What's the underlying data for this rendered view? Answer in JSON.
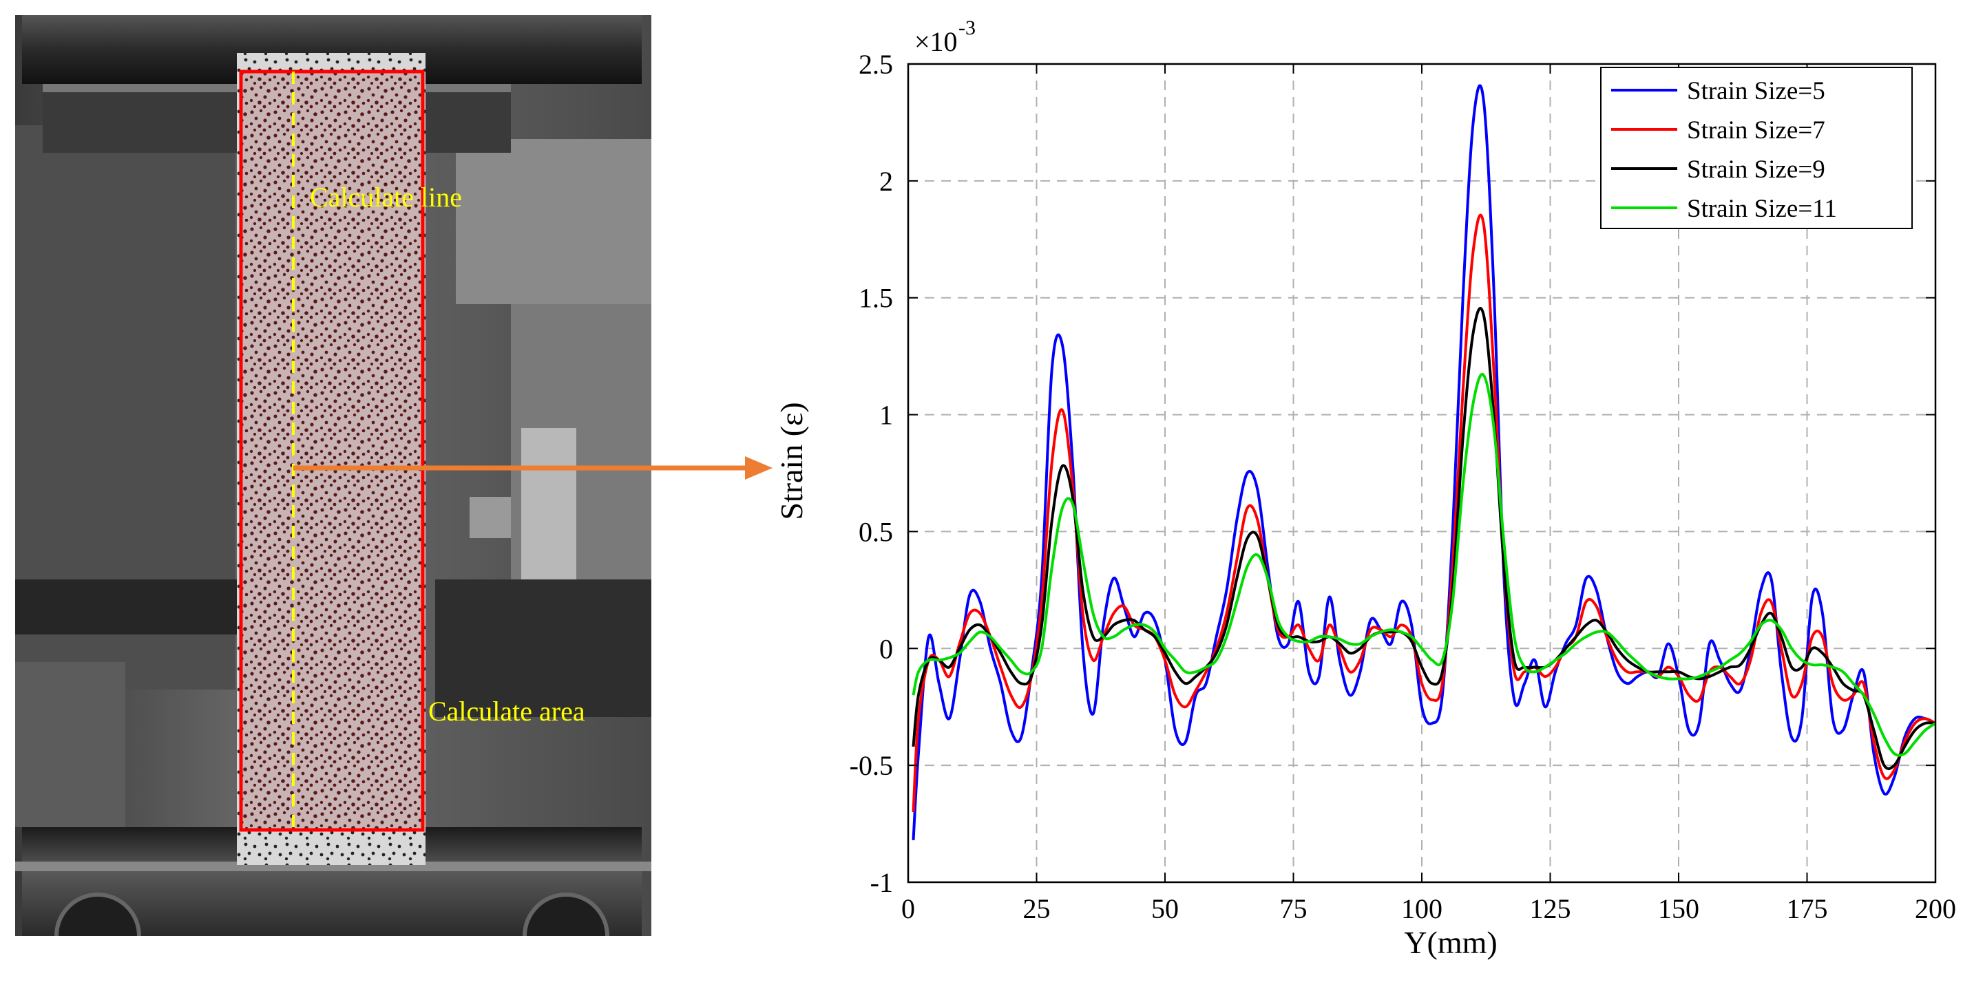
{
  "photo": {
    "line_label": "Calculate line",
    "area_label": "Calculate area",
    "line_color": "#ffff00",
    "area_color": "#ff0000",
    "arrow_color": "#ed7d31"
  },
  "chart_data": {
    "type": "line",
    "xlabel": "Y(mm)",
    "ylabel": "Strain (ε)",
    "y_multiplier": "×10",
    "y_exponent": "-3",
    "xlim": [
      0,
      200
    ],
    "ylim": [
      -1,
      2.5
    ],
    "xticks": [
      0,
      25,
      50,
      75,
      100,
      125,
      150,
      175,
      200
    ],
    "yticks": [
      -1,
      -0.5,
      0,
      0.5,
      1,
      1.5,
      2,
      2.5
    ],
    "xtick_labels": [
      "0",
      "25",
      "50",
      "75",
      "100",
      "125",
      "150",
      "175",
      "200"
    ],
    "ytick_labels": [
      "-1",
      "-0.5",
      "0",
      "0.5",
      "1",
      "1.5",
      "2",
      "2.5"
    ],
    "grid": true,
    "legend_position": "top-right",
    "series": [
      {
        "name": "Strain Size=5",
        "color": "#0000ff",
        "x": [
          1,
          2,
          4,
          6,
          8,
          10,
          12,
          14,
          16,
          18,
          20,
          22,
          24,
          26,
          28,
          30,
          32,
          34,
          36,
          38,
          40,
          42,
          44,
          46,
          48,
          50,
          52,
          54,
          56,
          58,
          60,
          62,
          64,
          66,
          68,
          70,
          72,
          74,
          76,
          78,
          80,
          82,
          84,
          86,
          88,
          90,
          92,
          94,
          96,
          98,
          100,
          102,
          104,
          106,
          108,
          110,
          112,
          114,
          116,
          118,
          120,
          122,
          124,
          126,
          128,
          130,
          132,
          134,
          136,
          138,
          140,
          142,
          144,
          146,
          148,
          150,
          152,
          154,
          156,
          158,
          160,
          162,
          164,
          166,
          168,
          170,
          172,
          174,
          176,
          178,
          180,
          182,
          184,
          186,
          188,
          190,
          192,
          194,
          196,
          198,
          200
        ],
        "y": [
          -0.82,
          -0.45,
          0.05,
          -0.15,
          -0.3,
          -0.05,
          0.23,
          0.2,
          0.0,
          -0.15,
          -0.35,
          -0.38,
          -0.1,
          0.3,
          1.2,
          1.3,
          0.8,
          0.0,
          -0.28,
          0.1,
          0.3,
          0.18,
          0.05,
          0.15,
          0.12,
          -0.05,
          -0.35,
          -0.4,
          -0.2,
          -0.15,
          0.05,
          0.25,
          0.55,
          0.75,
          0.68,
          0.35,
          0.05,
          0.02,
          0.2,
          -0.1,
          -0.12,
          0.22,
          -0.05,
          -0.2,
          -0.1,
          0.12,
          0.08,
          0.02,
          0.2,
          0.1,
          -0.25,
          -0.32,
          -0.2,
          0.5,
          1.5,
          2.25,
          2.35,
          1.55,
          0.3,
          -0.22,
          -0.15,
          -0.05,
          -0.25,
          -0.1,
          0.02,
          0.1,
          0.3,
          0.25,
          0.05,
          -0.1,
          -0.15,
          -0.12,
          -0.1,
          -0.12,
          0.02,
          -0.12,
          -0.35,
          -0.32,
          0.02,
          -0.05,
          -0.15,
          -0.18,
          0.0,
          0.25,
          0.3,
          -0.1,
          -0.38,
          -0.3,
          0.22,
          0.15,
          -0.3,
          -0.35,
          -0.2,
          -0.1,
          -0.45,
          -0.62,
          -0.55,
          -0.38,
          -0.3,
          -0.3,
          -0.32
        ]
      },
      {
        "name": "Strain Size=7",
        "color": "#ff0000",
        "x": [
          1,
          2,
          4,
          6,
          8,
          10,
          12,
          14,
          16,
          18,
          20,
          22,
          24,
          26,
          28,
          30,
          32,
          34,
          36,
          38,
          40,
          42,
          44,
          46,
          48,
          50,
          52,
          54,
          56,
          58,
          60,
          62,
          64,
          66,
          68,
          70,
          72,
          74,
          76,
          78,
          80,
          82,
          84,
          86,
          88,
          90,
          92,
          94,
          96,
          98,
          100,
          102,
          104,
          106,
          108,
          110,
          112,
          114,
          116,
          118,
          120,
          122,
          124,
          126,
          128,
          130,
          132,
          134,
          136,
          138,
          140,
          142,
          144,
          146,
          148,
          150,
          152,
          154,
          156,
          158,
          160,
          162,
          164,
          166,
          168,
          170,
          172,
          174,
          176,
          178,
          180,
          182,
          184,
          186,
          188,
          190,
          192,
          194,
          196,
          198,
          200
        ],
        "y": [
          -0.7,
          -0.3,
          -0.05,
          -0.05,
          -0.12,
          0.02,
          0.15,
          0.15,
          0.05,
          -0.08,
          -0.2,
          -0.25,
          -0.12,
          0.2,
          0.8,
          1.02,
          0.7,
          0.15,
          -0.05,
          0.05,
          0.15,
          0.18,
          0.1,
          0.08,
          0.05,
          -0.05,
          -0.2,
          -0.25,
          -0.18,
          -0.1,
          0.0,
          0.15,
          0.38,
          0.6,
          0.55,
          0.3,
          0.08,
          0.05,
          0.1,
          0.0,
          -0.05,
          0.1,
          0.0,
          -0.1,
          -0.05,
          0.08,
          0.08,
          0.05,
          0.1,
          0.05,
          -0.15,
          -0.22,
          -0.15,
          0.35,
          1.1,
          1.7,
          1.82,
          1.2,
          0.35,
          -0.1,
          -0.1,
          -0.08,
          -0.12,
          -0.08,
          0.0,
          0.05,
          0.2,
          0.18,
          0.05,
          -0.05,
          -0.1,
          -0.1,
          -0.1,
          -0.12,
          -0.08,
          -0.12,
          -0.2,
          -0.22,
          -0.1,
          -0.08,
          -0.12,
          -0.15,
          -0.05,
          0.15,
          0.2,
          0.0,
          -0.2,
          -0.15,
          0.05,
          0.05,
          -0.15,
          -0.22,
          -0.2,
          -0.15,
          -0.4,
          -0.55,
          -0.52,
          -0.4,
          -0.32,
          -0.3,
          -0.32
        ]
      },
      {
        "name": "Strain Size=9",
        "color": "#000000",
        "x": [
          1,
          2,
          4,
          6,
          8,
          10,
          12,
          14,
          16,
          18,
          20,
          22,
          24,
          26,
          28,
          30,
          32,
          34,
          36,
          38,
          40,
          42,
          44,
          46,
          48,
          50,
          52,
          54,
          56,
          58,
          60,
          62,
          64,
          66,
          68,
          70,
          72,
          74,
          76,
          78,
          80,
          82,
          84,
          86,
          88,
          90,
          92,
          94,
          96,
          98,
          100,
          102,
          104,
          106,
          108,
          110,
          112,
          114,
          116,
          118,
          120,
          122,
          124,
          126,
          128,
          130,
          132,
          134,
          136,
          138,
          140,
          142,
          144,
          146,
          148,
          150,
          152,
          154,
          156,
          158,
          160,
          162,
          164,
          166,
          168,
          170,
          172,
          174,
          176,
          178,
          180,
          182,
          184,
          186,
          188,
          190,
          192,
          194,
          196,
          198,
          200
        ],
        "y": [
          -0.42,
          -0.2,
          -0.05,
          -0.05,
          -0.08,
          0.0,
          0.08,
          0.1,
          0.05,
          -0.02,
          -0.1,
          -0.15,
          -0.12,
          0.1,
          0.55,
          0.78,
          0.65,
          0.25,
          0.05,
          0.05,
          0.1,
          0.12,
          0.12,
          0.08,
          0.05,
          -0.02,
          -0.1,
          -0.15,
          -0.12,
          -0.08,
          -0.02,
          0.1,
          0.3,
          0.47,
          0.48,
          0.3,
          0.1,
          0.05,
          0.05,
          0.03,
          0.03,
          0.05,
          0.02,
          -0.02,
          0.0,
          0.05,
          0.07,
          0.07,
          0.07,
          0.03,
          -0.08,
          -0.15,
          -0.1,
          0.25,
          0.9,
          1.35,
          1.43,
          1.0,
          0.35,
          -0.05,
          -0.08,
          -0.08,
          -0.08,
          -0.05,
          0.0,
          0.05,
          0.1,
          0.12,
          0.07,
          0.0,
          -0.05,
          -0.08,
          -0.1,
          -0.1,
          -0.1,
          -0.1,
          -0.12,
          -0.13,
          -0.12,
          -0.1,
          -0.08,
          -0.07,
          0.0,
          0.1,
          0.15,
          0.05,
          -0.08,
          -0.08,
          0.0,
          -0.02,
          -0.08,
          -0.15,
          -0.18,
          -0.2,
          -0.35,
          -0.5,
          -0.5,
          -0.42,
          -0.35,
          -0.32,
          -0.32
        ]
      },
      {
        "name": "Strain Size=11",
        "color": "#00dd00",
        "x": [
          1,
          2,
          4,
          6,
          8,
          10,
          12,
          14,
          16,
          18,
          20,
          22,
          24,
          26,
          28,
          30,
          32,
          34,
          36,
          38,
          40,
          42,
          44,
          46,
          48,
          50,
          52,
          54,
          56,
          58,
          60,
          62,
          64,
          66,
          68,
          70,
          72,
          74,
          76,
          78,
          80,
          82,
          84,
          86,
          88,
          90,
          92,
          94,
          96,
          98,
          100,
          102,
          104,
          106,
          108,
          110,
          112,
          114,
          116,
          118,
          120,
          122,
          124,
          126,
          128,
          130,
          132,
          134,
          136,
          138,
          140,
          142,
          144,
          146,
          148,
          150,
          152,
          154,
          156,
          158,
          160,
          162,
          164,
          166,
          168,
          170,
          172,
          174,
          176,
          178,
          180,
          182,
          184,
          186,
          188,
          190,
          192,
          194,
          196,
          198,
          200
        ],
        "y": [
          -0.2,
          -0.1,
          -0.05,
          -0.05,
          -0.04,
          -0.02,
          0.03,
          0.07,
          0.05,
          0.0,
          -0.05,
          -0.1,
          -0.1,
          0.0,
          0.35,
          0.6,
          0.62,
          0.38,
          0.15,
          0.05,
          0.05,
          0.08,
          0.1,
          0.1,
          0.07,
          0.0,
          -0.05,
          -0.1,
          -0.1,
          -0.08,
          -0.05,
          0.05,
          0.2,
          0.35,
          0.4,
          0.3,
          0.12,
          0.05,
          0.03,
          0.03,
          0.05,
          0.05,
          0.04,
          0.02,
          0.02,
          0.05,
          0.07,
          0.08,
          0.07,
          0.05,
          0.0,
          -0.05,
          -0.05,
          0.2,
          0.7,
          1.05,
          1.17,
          0.95,
          0.45,
          0.05,
          -0.08,
          -0.1,
          -0.08,
          -0.05,
          -0.02,
          0.02,
          0.05,
          0.07,
          0.07,
          0.03,
          -0.02,
          -0.06,
          -0.1,
          -0.12,
          -0.13,
          -0.13,
          -0.13,
          -0.12,
          -0.1,
          -0.08,
          -0.05,
          -0.02,
          0.03,
          0.1,
          0.12,
          0.08,
          0.0,
          -0.05,
          -0.07,
          -0.07,
          -0.08,
          -0.1,
          -0.15,
          -0.2,
          -0.28,
          -0.38,
          -0.45,
          -0.45,
          -0.4,
          -0.35,
          -0.32
        ]
      }
    ]
  }
}
